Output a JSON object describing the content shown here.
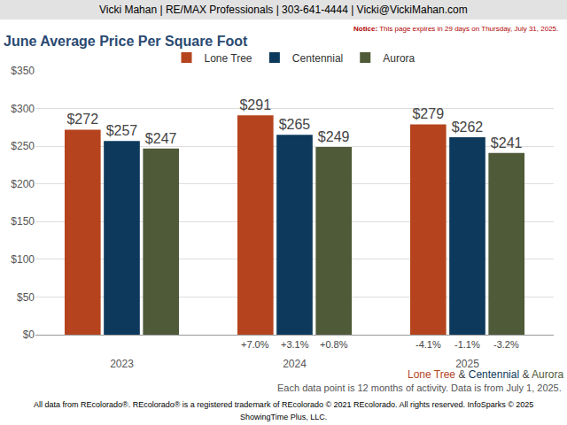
{
  "page": {
    "header": "Vicki Mahan | RE/MAX Professionals | 303-641-4444 | Vicki@VickiMahan.com",
    "notice_label": "Notice:",
    "notice": "This page expires in 29 days on Thursday, July 31, 2025.",
    "caption_separator": " & ",
    "note": "Each data point is 12 months of activity. Data is from July 1, 2025.",
    "footer": [
      "All data from REcolorado®. REcolorado® is a registered trademark of REcolorado © 2021 REcolorado. All rights reserved. InfoSparks © 2025",
      "ShowingTime Plus, LLC."
    ]
  },
  "chart_data": {
    "type": "bar",
    "title": "June Average Price Per Square Foot",
    "categories": [
      "2023",
      "2024",
      "2025"
    ],
    "series": [
      {
        "name": "Lone Tree",
        "color": "#b5441e",
        "values": [
          272,
          291,
          279
        ],
        "value_labels": [
          "$272",
          "$291",
          "$279"
        ],
        "changes": [
          null,
          7.0,
          -4.1
        ],
        "change_labels": [
          null,
          "+7.0%",
          "-4.1%"
        ]
      },
      {
        "name": "Centennial",
        "color": "#0d3a5c",
        "values": [
          257,
          265,
          262
        ],
        "value_labels": [
          "$257",
          "$265",
          "$262"
        ],
        "changes": [
          null,
          3.1,
          -1.1
        ],
        "change_labels": [
          null,
          "+3.1%",
          "-1.1%"
        ]
      },
      {
        "name": "Aurora",
        "color": "#4f5a38",
        "values": [
          247,
          249,
          241
        ],
        "value_labels": [
          "$247",
          "$249",
          "$241"
        ],
        "changes": [
          null,
          0.8,
          -3.2
        ],
        "change_labels": [
          null,
          "+0.8%",
          "-3.2%"
        ]
      }
    ],
    "ylim": [
      0,
      350
    ],
    "yticks": [
      {
        "value": 0,
        "label": "$0"
      },
      {
        "value": 50,
        "label": "$50"
      },
      {
        "value": 100,
        "label": "$100"
      },
      {
        "value": 150,
        "label": "$150"
      },
      {
        "value": 200,
        "label": "$200"
      },
      {
        "value": 250,
        "label": "$250"
      },
      {
        "value": 300,
        "label": "$300"
      },
      {
        "value": 350,
        "label": "$350"
      }
    ],
    "grid": true,
    "legend": "top",
    "data_labels": true
  }
}
